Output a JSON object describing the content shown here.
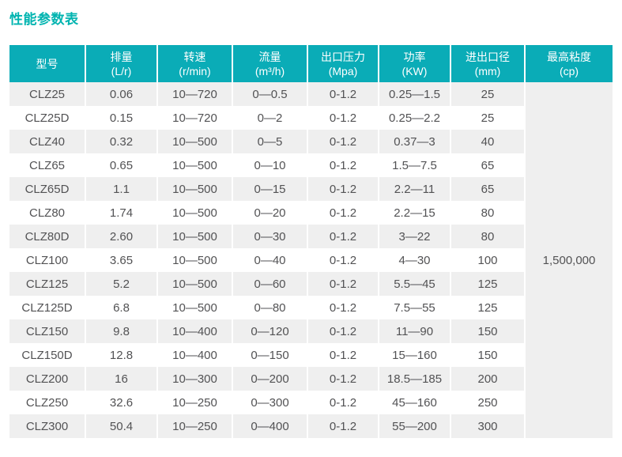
{
  "page": {
    "title": "性能参数表",
    "title_color": "#00b4b0"
  },
  "table": {
    "header_bg": "#0aacb7",
    "header_text_color": "#ffffff",
    "stripe_color": "#efefef",
    "body_text_color": "#525254",
    "columns": [
      {
        "label": "型号",
        "unit": ""
      },
      {
        "label": "排量",
        "unit": "(L/r)"
      },
      {
        "label": "转速",
        "unit": "(r/min)"
      },
      {
        "label": "流量",
        "unit": "(m³/h)"
      },
      {
        "label": "出口压力",
        "unit": "(Mpa)"
      },
      {
        "label": "功率",
        "unit": "(KW)"
      },
      {
        "label": "进出口径",
        "unit": "(mm)"
      },
      {
        "label": "最高粘度",
        "unit": "(cp)"
      }
    ],
    "max_viscosity": "1,500,000",
    "rows": [
      [
        "CLZ25",
        "0.06",
        "10—720",
        "0—0.5",
        "0-1.2",
        "0.25—1.5",
        "25"
      ],
      [
        "CLZ25D",
        "0.15",
        "10—720",
        "0—2",
        "0-1.2",
        "0.25—2.2",
        "25"
      ],
      [
        "CLZ40",
        "0.32",
        "10—500",
        "0—5",
        "0-1.2",
        "0.37—3",
        "40"
      ],
      [
        "CLZ65",
        "0.65",
        "10—500",
        "0—10",
        "0-1.2",
        "1.5—7.5",
        "65"
      ],
      [
        "CLZ65D",
        "1.1",
        "10—500",
        "0—15",
        "0-1.2",
        "2.2—11",
        "65"
      ],
      [
        "CLZ80",
        "1.74",
        "10—500",
        "0—20",
        "0-1.2",
        "2.2—15",
        "80"
      ],
      [
        "CLZ80D",
        "2.60",
        "10—500",
        "0—30",
        "0-1.2",
        "3—22",
        "80"
      ],
      [
        "CLZ100",
        "3.65",
        "10—500",
        "0—40",
        "0-1.2",
        "4—30",
        "100"
      ],
      [
        "CLZ125",
        "5.2",
        "10—500",
        "0—60",
        "0-1.2",
        "5.5—45",
        "125"
      ],
      [
        "CLZ125D",
        "6.8",
        "10—500",
        "0—80",
        "0-1.2",
        "7.5—55",
        "125"
      ],
      [
        "CLZ150",
        "9.8",
        "10—400",
        "0—120",
        "0-1.2",
        "11—90",
        "150"
      ],
      [
        "CLZ150D",
        "12.8",
        "10—400",
        "0—150",
        "0-1.2",
        "15—160",
        "150"
      ],
      [
        "CLZ200",
        "16",
        "10—300",
        "0—200",
        "0-1.2",
        "18.5—185",
        "200"
      ],
      [
        "CLZ250",
        "32.6",
        "10—250",
        "0—300",
        "0-1.2",
        "45—160",
        "250"
      ],
      [
        "CLZ300",
        "50.4",
        "10—250",
        "0—400",
        "0-1.2",
        "55—200",
        "300"
      ]
    ]
  }
}
